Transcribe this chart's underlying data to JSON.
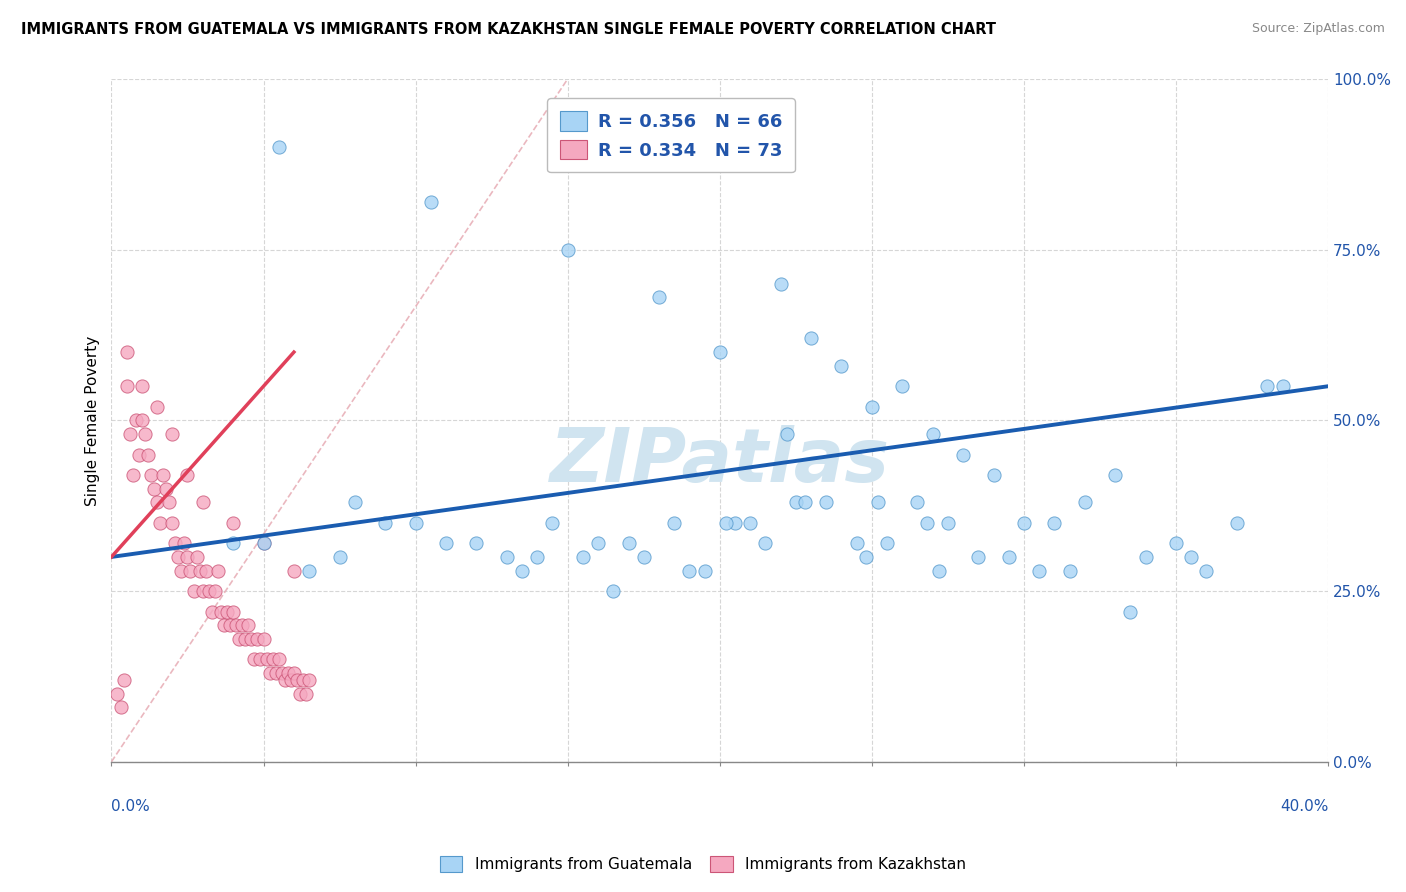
{
  "title": "IMMIGRANTS FROM GUATEMALA VS IMMIGRANTS FROM KAZAKHSTAN SINGLE FEMALE POVERTY CORRELATION CHART",
  "source": "Source: ZipAtlas.com",
  "ylabel": "Single Female Poverty",
  "yticks_labels": [
    "0.0%",
    "25.0%",
    "50.0%",
    "75.0%",
    "100.0%"
  ],
  "ytick_vals": [
    0,
    25,
    50,
    75,
    100
  ],
  "xlim": [
    0,
    40
  ],
  "ylim": [
    0,
    100
  ],
  "legend_r1": "R = 0.356",
  "legend_n1": "N = 66",
  "legend_r2": "R = 0.334",
  "legend_n2": "N = 73",
  "color_guatemala": "#A8D4F5",
  "color_kazakhstan": "#F5A8C0",
  "color_guatemala_edge": "#5599CC",
  "color_kazakhstan_edge": "#CC5577",
  "color_blue_line": "#1A5CB0",
  "color_pink_line": "#E0405A",
  "color_diag_line": "#E8B0B8",
  "watermark": "ZIPatlas",
  "watermark_color": "#D0E4F0",
  "legend_label_guatemala": "Immigrants from Guatemala",
  "legend_label_kazakhstan": "Immigrants from Kazakhstan",
  "guatemala_x": [
    5.5,
    10.5,
    15.0,
    18.0,
    20.0,
    22.0,
    23.0,
    24.0,
    25.0,
    26.0,
    27.0,
    28.0,
    29.0,
    30.0,
    32.0,
    33.0,
    34.0,
    35.0,
    36.0,
    37.0,
    38.0,
    5.0,
    7.5,
    9.0,
    11.0,
    13.0,
    14.5,
    16.0,
    17.5,
    19.0,
    21.0,
    22.5,
    24.5,
    26.5,
    28.5,
    31.0,
    8.0,
    12.0,
    15.5,
    20.5,
    23.5,
    25.5,
    27.5,
    29.5,
    31.5,
    4.0,
    6.5,
    10.0,
    14.0,
    18.5,
    22.8,
    16.5,
    21.5,
    25.2,
    30.5,
    35.5,
    19.5,
    24.8,
    27.2,
    33.5,
    38.5,
    20.2,
    26.8,
    22.2,
    17.0,
    13.5
  ],
  "guatemala_y": [
    90,
    82,
    75,
    68,
    60,
    70,
    62,
    58,
    52,
    55,
    48,
    45,
    42,
    35,
    38,
    42,
    30,
    32,
    28,
    35,
    55,
    32,
    30,
    35,
    32,
    30,
    35,
    32,
    30,
    28,
    35,
    38,
    32,
    38,
    30,
    35,
    38,
    32,
    30,
    35,
    38,
    32,
    35,
    30,
    28,
    32,
    28,
    35,
    30,
    35,
    38,
    25,
    32,
    38,
    28,
    30,
    28,
    30,
    28,
    22,
    55,
    35,
    35,
    48,
    32,
    28
  ],
  "kazakhstan_x": [
    0.2,
    0.3,
    0.4,
    0.5,
    0.6,
    0.7,
    0.8,
    0.9,
    1.0,
    1.1,
    1.2,
    1.3,
    1.4,
    1.5,
    1.6,
    1.7,
    1.8,
    1.9,
    2.0,
    2.1,
    2.2,
    2.3,
    2.4,
    2.5,
    2.6,
    2.7,
    2.8,
    2.9,
    3.0,
    3.1,
    3.2,
    3.3,
    3.4,
    3.5,
    3.6,
    3.7,
    3.8,
    3.9,
    4.0,
    4.1,
    4.2,
    4.3,
    4.4,
    4.5,
    4.6,
    4.7,
    4.8,
    4.9,
    5.0,
    5.1,
    5.2,
    5.3,
    5.4,
    5.5,
    5.6,
    5.7,
    5.8,
    5.9,
    6.0,
    6.1,
    6.2,
    6.3,
    6.4,
    6.5,
    0.5,
    1.0,
    1.5,
    2.0,
    2.5,
    3.0,
    4.0,
    5.0,
    6.0
  ],
  "kazakhstan_y": [
    10,
    8,
    12,
    55,
    48,
    42,
    50,
    45,
    50,
    48,
    45,
    42,
    40,
    38,
    35,
    42,
    40,
    38,
    35,
    32,
    30,
    28,
    32,
    30,
    28,
    25,
    30,
    28,
    25,
    28,
    25,
    22,
    25,
    28,
    22,
    20,
    22,
    20,
    22,
    20,
    18,
    20,
    18,
    20,
    18,
    15,
    18,
    15,
    18,
    15,
    13,
    15,
    13,
    15,
    13,
    12,
    13,
    12,
    13,
    12,
    10,
    12,
    10,
    12,
    60,
    55,
    52,
    48,
    42,
    38,
    35,
    32,
    28
  ],
  "blue_line_x0": 0,
  "blue_line_y0": 30,
  "blue_line_x1": 40,
  "blue_line_y1": 55,
  "pink_line_x0": 0,
  "pink_line_y0": 30,
  "pink_line_x1": 6,
  "pink_line_y1": 60
}
